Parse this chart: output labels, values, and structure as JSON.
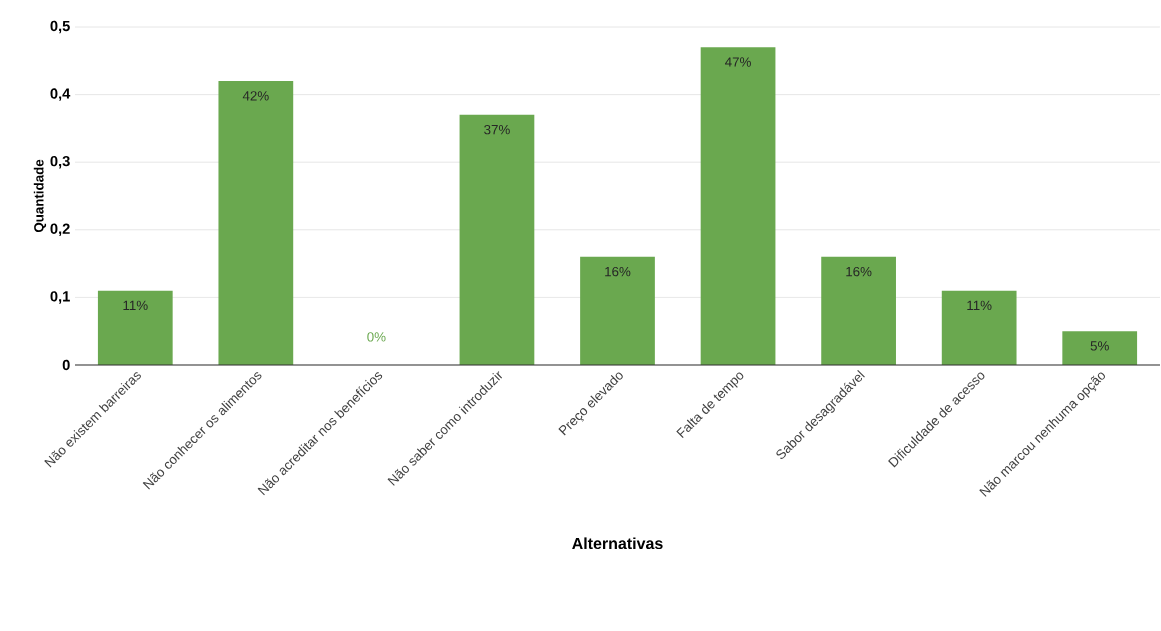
{
  "chart_data": {
    "type": "bar",
    "xlabel": "Alternativas",
    "ylabel": "Quantidade",
    "categories": [
      "Não existem barreiras",
      "Não conhecer os alimentos",
      "Não acreditar nos  benefícios",
      "Não saber como introduzir",
      "Preço elevado",
      "Falta de tempo",
      "Sabor desagradável",
      "Dificuldade de acesso",
      "Não marcou nenhuma opção"
    ],
    "values": [
      0.11,
      0.42,
      0,
      0.37,
      0.16,
      0.47,
      0.16,
      0.11,
      0.05
    ],
    "value_labels": [
      "11%",
      "42%",
      "0%",
      "37%",
      "16%",
      "47%",
      "16%",
      "11%",
      "5%"
    ],
    "color": "#6aa84f",
    "ylim": [
      0,
      0.5
    ],
    "yticks": [
      0,
      {
        "value": 0.1,
        "label": "0,1"
      },
      {
        "value": 0.2,
        "label": "0,2"
      },
      {
        "value": 0.3,
        "label": "0,3"
      },
      {
        "value": 0.4,
        "label": "0,4"
      },
      {
        "value": 0.5,
        "label": "0,5"
      }
    ],
    "grid": "y"
  }
}
